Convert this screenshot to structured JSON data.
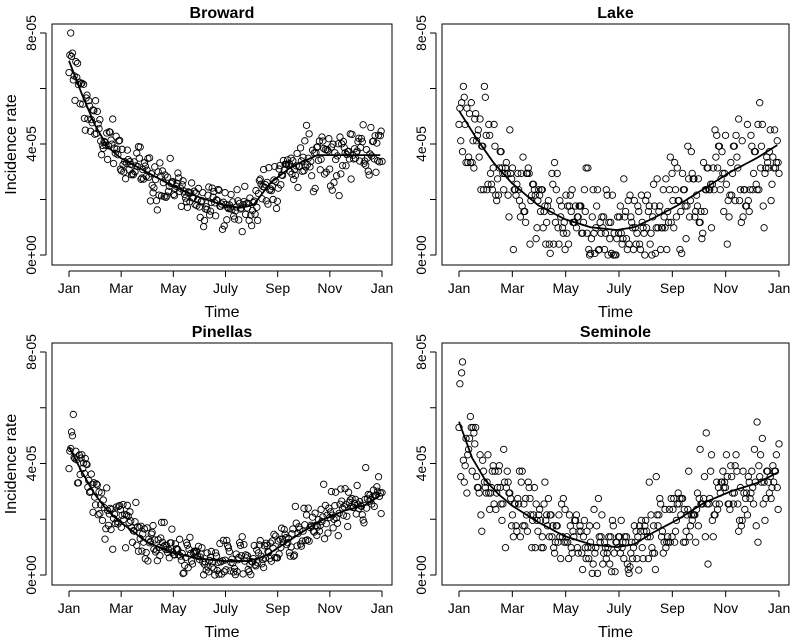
{
  "chart_data": [
    {
      "type": "scatter",
      "title": "Broward",
      "xlabel": "Time",
      "ylabel": "Incidence rate",
      "x_ticks": [
        "Jan",
        "Mar",
        "May",
        "July",
        "Sep",
        "Nov",
        "Jan"
      ],
      "y_ticks": [
        "0e+00",
        "2e-05",
        "4e-05",
        "6e-05",
        "8e-05"
      ],
      "y_ticks_labeled": [
        "0e+00",
        "4e-05",
        "8e-05"
      ],
      "xlim_days": [
        0,
        365
      ],
      "ylim": [
        0,
        8e-05
      ],
      "scatter_shape": "exp_decay_to_summer_then_plateau",
      "scatter_noise": 4.5e-06,
      "trend_points": [
        [
          0,
          7e-05
        ],
        [
          15,
          5.8e-05
        ],
        [
          30,
          4.7e-05
        ],
        [
          45,
          3.9e-05
        ],
        [
          60,
          3.5e-05
        ],
        [
          90,
          3e-05
        ],
        [
          120,
          2.5e-05
        ],
        [
          150,
          2.1e-05
        ],
        [
          180,
          1.8e-05
        ],
        [
          200,
          1.7e-05
        ],
        [
          215,
          1.8e-05
        ],
        [
          235,
          2.6e-05
        ],
        [
          260,
          3.2e-05
        ],
        [
          290,
          3.6e-05
        ],
        [
          320,
          3.6e-05
        ],
        [
          345,
          3.6e-05
        ],
        [
          365,
          3.6e-05
        ]
      ]
    },
    {
      "type": "scatter",
      "title": "Lake",
      "xlabel": "Time",
      "ylabel": "",
      "x_ticks": [
        "Jan",
        "Mar",
        "May",
        "July",
        "Sep",
        "Nov",
        "Jan"
      ],
      "y_ticks": [
        "0e+00",
        "2e-05",
        "4e-05",
        "6e-05",
        "8e-05"
      ],
      "y_ticks_labeled": [
        "0e+00",
        "4e-05",
        "8e-05"
      ],
      "xlim_days": [
        0,
        365
      ],
      "ylim": [
        0,
        8e-05
      ],
      "scatter_shape": "u_shape_discrete",
      "scatter_noise": 1.1e-05,
      "trend_points": [
        [
          0,
          5.2e-05
        ],
        [
          20,
          4.2e-05
        ],
        [
          40,
          3.3e-05
        ],
        [
          60,
          2.6e-05
        ],
        [
          90,
          1.8e-05
        ],
        [
          120,
          1.3e-05
        ],
        [
          150,
          1e-05
        ],
        [
          180,
          9e-06
        ],
        [
          200,
          1e-05
        ],
        [
          220,
          1.3e-05
        ],
        [
          250,
          1.8e-05
        ],
        [
          280,
          2.4e-05
        ],
        [
          310,
          3e-05
        ],
        [
          340,
          3.5e-05
        ],
        [
          365,
          4e-05
        ]
      ]
    },
    {
      "type": "scatter",
      "title": "Pinellas",
      "xlabel": "Time",
      "ylabel": "Incidence rate",
      "x_ticks": [
        "Jan",
        "Mar",
        "May",
        "July",
        "Sep",
        "Nov",
        "Jan"
      ],
      "y_ticks": [
        "0e+00",
        "2e-05",
        "4e-05",
        "6e-05",
        "8e-05"
      ],
      "y_ticks_labeled": [
        "0e+00",
        "4e-05",
        "8e-05"
      ],
      "xlim_days": [
        0,
        365
      ],
      "ylim": [
        0,
        8e-05
      ],
      "scatter_shape": "u_shape",
      "scatter_noise": 5e-06,
      "trend_points": [
        [
          0,
          4.6e-05
        ],
        [
          15,
          3.7e-05
        ],
        [
          30,
          2.9e-05
        ],
        [
          45,
          2.3e-05
        ],
        [
          60,
          1.9e-05
        ],
        [
          90,
          1.2e-05
        ],
        [
          120,
          8e-06
        ],
        [
          150,
          6e-06
        ],
        [
          180,
          5e-06
        ],
        [
          210,
          5e-06
        ],
        [
          230,
          7e-06
        ],
        [
          260,
          1.3e-05
        ],
        [
          290,
          1.9e-05
        ],
        [
          320,
          2.3e-05
        ],
        [
          345,
          2.5e-05
        ],
        [
          365,
          2.9e-05
        ]
      ]
    },
    {
      "type": "scatter",
      "title": "Seminole",
      "xlabel": "Time",
      "ylabel": "",
      "x_ticks": [
        "Jan",
        "Mar",
        "May",
        "July",
        "Sep",
        "Nov",
        "Jan"
      ],
      "y_ticks": [
        "0e+00",
        "2e-05",
        "4e-05",
        "6e-05",
        "8e-05"
      ],
      "y_ticks_labeled": [
        "0e+00",
        "4e-05",
        "8e-05"
      ],
      "xlim_days": [
        0,
        365
      ],
      "ylim": [
        0,
        8e-05
      ],
      "scatter_shape": "u_shape_discrete",
      "scatter_noise": 9e-06,
      "trend_points": [
        [
          0,
          5.5e-05
        ],
        [
          15,
          4.2e-05
        ],
        [
          30,
          3.4e-05
        ],
        [
          45,
          2.9e-05
        ],
        [
          60,
          2.5e-05
        ],
        [
          90,
          1.9e-05
        ],
        [
          120,
          1.4e-05
        ],
        [
          150,
          1.1e-05
        ],
        [
          180,
          1e-05
        ],
        [
          200,
          1.1e-05
        ],
        [
          220,
          1.5e-05
        ],
        [
          250,
          2e-05
        ],
        [
          280,
          2.6e-05
        ],
        [
          310,
          3e-05
        ],
        [
          340,
          3.3e-05
        ],
        [
          365,
          3.7e-05
        ]
      ]
    }
  ]
}
